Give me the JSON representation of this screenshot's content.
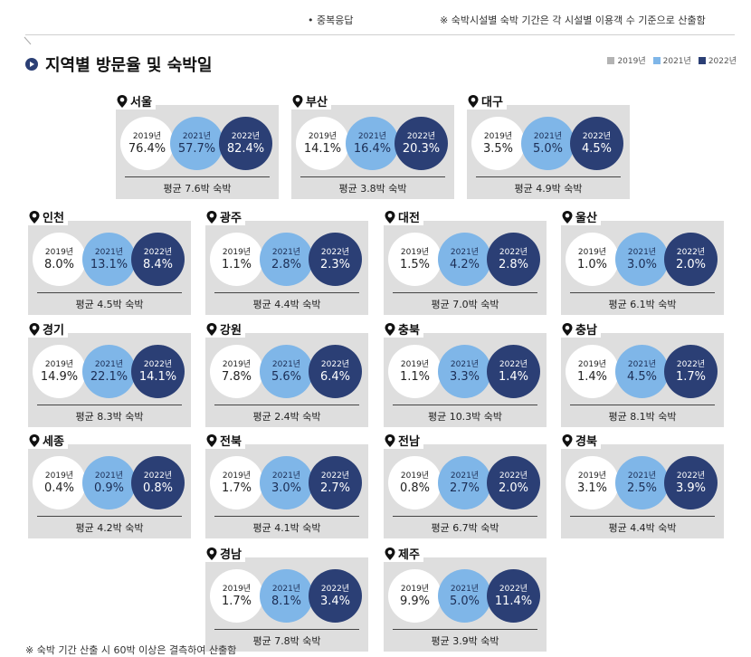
{
  "top_notes": {
    "left": "• 중복응답",
    "right": "※ 숙박시설별 숙박 기간은 각 시설별 이용객 수 기준으로 산출함"
  },
  "title": "지역별 방문율 및 숙박일",
  "colors": {
    "y2019": "#ffffff",
    "y2021": "#7fb6e8",
    "y2022": "#2b3f75",
    "card_bg": "#dedede"
  },
  "legend": [
    {
      "label": "2019년",
      "color": "#b3b3b3"
    },
    {
      "label": "2021년",
      "color": "#7fb6e8"
    },
    {
      "label": "2022년",
      "color": "#2b3f75"
    }
  ],
  "footnote": "※ 숙박 기간 산출 시 60박 이상은 결측하여 산출함",
  "chart_data": {
    "type": "table",
    "title": "지역별 방문율 및 숙박일",
    "years": [
      "2019년",
      "2021년",
      "2022년"
    ],
    "regions": [
      {
        "name": "서울",
        "values": [
          "76.4%",
          "57.7%",
          "82.4%"
        ],
        "avg": "평균 7.6박 숙박"
      },
      {
        "name": "부산",
        "values": [
          "14.1%",
          "16.4%",
          "20.3%"
        ],
        "avg": "평균 3.8박 숙박"
      },
      {
        "name": "대구",
        "values": [
          "3.5%",
          "5.0%",
          "4.5%"
        ],
        "avg": "평균 4.9박 숙박"
      },
      {
        "name": "인천",
        "values": [
          "8.0%",
          "13.1%",
          "8.4%"
        ],
        "avg": "평균 4.5박 숙박"
      },
      {
        "name": "광주",
        "values": [
          "1.1%",
          "2.8%",
          "2.3%"
        ],
        "avg": "평균 4.4박 숙박"
      },
      {
        "name": "대전",
        "values": [
          "1.5%",
          "4.2%",
          "2.8%"
        ],
        "avg": "평균 7.0박 숙박"
      },
      {
        "name": "울산",
        "values": [
          "1.0%",
          "3.0%",
          "2.0%"
        ],
        "avg": "평균 6.1박 숙박"
      },
      {
        "name": "경기",
        "values": [
          "14.9%",
          "22.1%",
          "14.1%"
        ],
        "avg": "평균 8.3박 숙박"
      },
      {
        "name": "강원",
        "values": [
          "7.8%",
          "5.6%",
          "6.4%"
        ],
        "avg": "평균 2.4박 숙박"
      },
      {
        "name": "충북",
        "values": [
          "1.1%",
          "3.3%",
          "1.4%"
        ],
        "avg": "평균 10.3박 숙박"
      },
      {
        "name": "충남",
        "values": [
          "1.4%",
          "4.5%",
          "1.7%"
        ],
        "avg": "평균 8.1박 숙박"
      },
      {
        "name": "세종",
        "values": [
          "0.4%",
          "0.9%",
          "0.8%"
        ],
        "avg": "평균 4.2박 숙박"
      },
      {
        "name": "전북",
        "values": [
          "1.7%",
          "3.0%",
          "2.7%"
        ],
        "avg": "평균 4.1박 숙박"
      },
      {
        "name": "전남",
        "values": [
          "0.8%",
          "2.7%",
          "2.0%"
        ],
        "avg": "평균 6.7박 숙박"
      },
      {
        "name": "경북",
        "values": [
          "3.1%",
          "2.5%",
          "3.9%"
        ],
        "avg": "평균 4.4박 숙박"
      },
      {
        "name": "경남",
        "values": [
          "1.7%",
          "8.1%",
          "3.4%"
        ],
        "avg": "평균 7.8박 숙박"
      },
      {
        "name": "제주",
        "values": [
          "9.9%",
          "5.0%",
          "11.4%"
        ],
        "avg": "평균 3.9박 숙박"
      }
    ]
  }
}
